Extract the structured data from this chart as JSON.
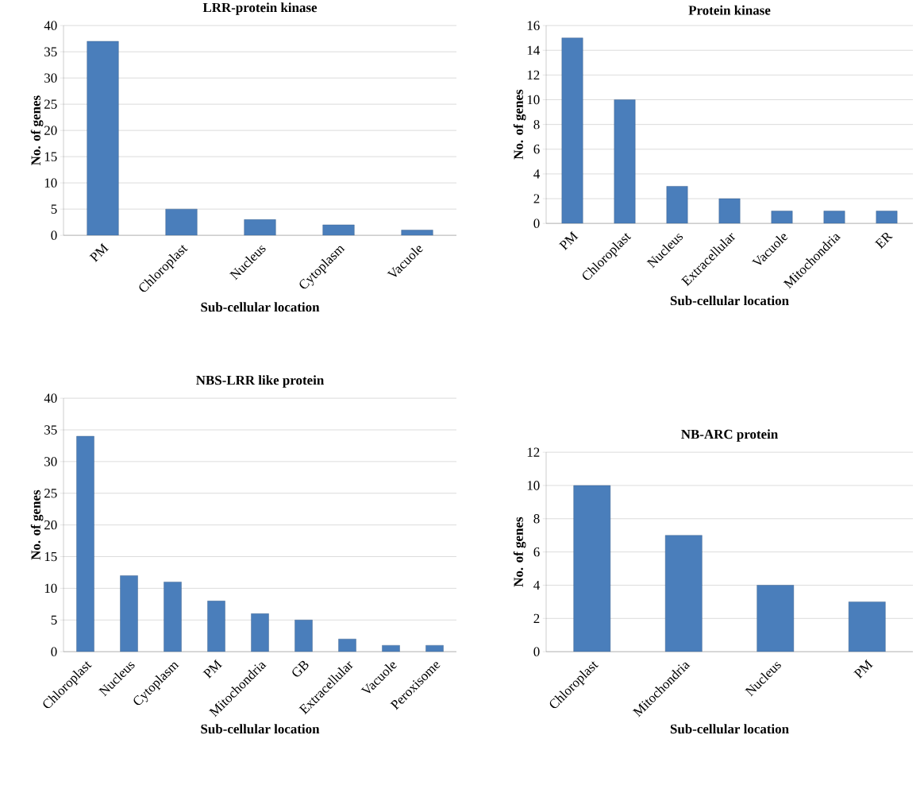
{
  "chart_data": [
    {
      "type": "bar",
      "title": "LRR-protein kinase",
      "xlabel": "Sub-cellular location",
      "ylabel": "No. of genes",
      "categories": [
        "PM",
        "Chloroplast",
        "Nucleus",
        "Cytoplasm",
        "Vacuole"
      ],
      "values": [
        37,
        5,
        3,
        2,
        1
      ],
      "color": "#4a7ebb",
      "ylim": [
        0,
        40
      ],
      "yticks": [
        0,
        5,
        10,
        15,
        20,
        25,
        30,
        35,
        40
      ],
      "grid": "y"
    },
    {
      "type": "bar",
      "title": "Protein kinase",
      "xlabel": "Sub-cellular location",
      "ylabel": "No. of genes",
      "categories": [
        "PM",
        "Chloroplast",
        "Nucleus",
        "Extracellular",
        "Vacuole",
        "Mitochondria",
        "ER"
      ],
      "values": [
        15,
        10,
        3,
        2,
        1,
        1,
        1
      ],
      "color": "#4a7ebb",
      "ylim": [
        0,
        16
      ],
      "yticks": [
        0,
        2,
        4,
        6,
        8,
        10,
        12,
        14,
        16
      ],
      "grid": "y"
    },
    {
      "type": "bar",
      "title": "NBS-LRR like protein",
      "xlabel": "Sub-cellular location",
      "ylabel": "No. of genes",
      "categories": [
        "Chloroplast",
        "Nucleus",
        "Cytoplasm",
        "PM",
        "Mitochondria",
        "GB",
        "Extracellular",
        "Vacuole",
        "Peroxisome"
      ],
      "values": [
        34,
        12,
        11,
        8,
        6,
        5,
        2,
        1,
        1
      ],
      "color": "#4a7ebb",
      "ylim": [
        0,
        40
      ],
      "yticks": [
        0,
        5,
        10,
        15,
        20,
        25,
        30,
        35,
        40
      ],
      "grid": "y"
    },
    {
      "type": "bar",
      "title": "NB-ARC protein",
      "xlabel": "Sub-cellular location",
      "ylabel": "No. of genes",
      "categories": [
        "Chloroplast",
        "Mitochondria",
        "Nucleus",
        "PM"
      ],
      "values": [
        10,
        7,
        4,
        3
      ],
      "color": "#4a7ebb",
      "ylim": [
        0,
        12
      ],
      "yticks": [
        0,
        2,
        4,
        6,
        8,
        10,
        12
      ],
      "grid": "y"
    }
  ]
}
